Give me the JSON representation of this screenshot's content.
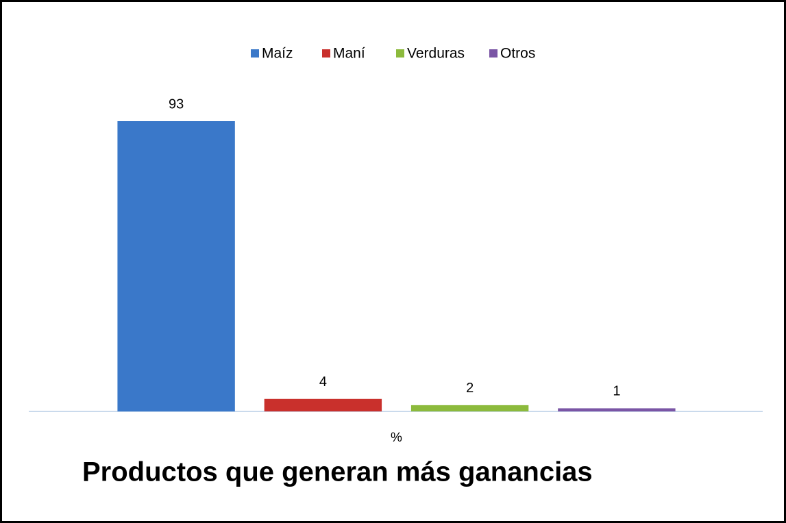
{
  "chart_data": {
    "type": "bar",
    "title": "Productos que generan más ganancias",
    "categories": [
      "%"
    ],
    "series": [
      {
        "name": "Maíz",
        "color": "#3a78c9",
        "values": [
          93
        ]
      },
      {
        "name": "Maní",
        "color": "#c9302c",
        "values": [
          4
        ]
      },
      {
        "name": "Verduras",
        "color": "#8cba3c",
        "values": [
          2
        ]
      },
      {
        "name": "Otros",
        "color": "#7a55a5",
        "values": [
          1
        ]
      }
    ],
    "legend": "top"
  }
}
